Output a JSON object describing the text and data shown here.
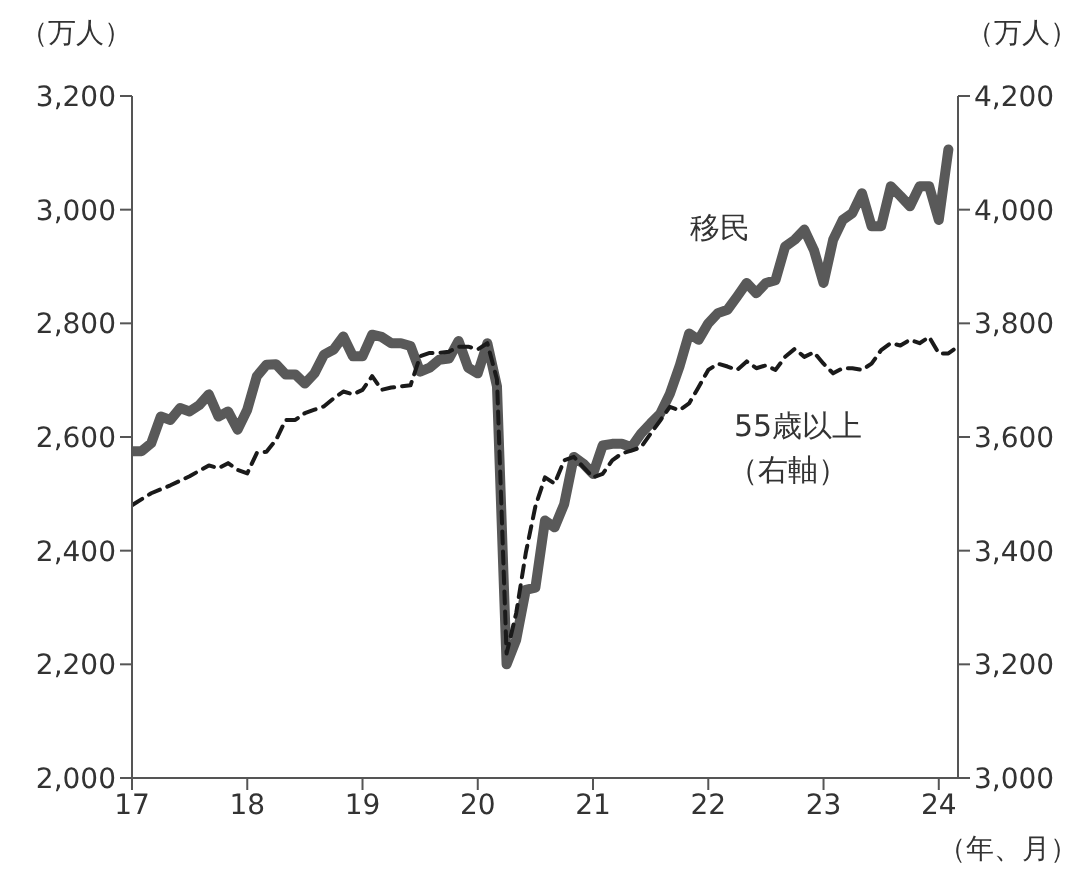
{
  "chart_data": {
    "type": "line",
    "ylabel": "（万人）",
    "y2label": "（万人）",
    "xlabel": "（年、月）",
    "annotations": [
      "（右軸）"
    ],
    "x": [
      "2017-01",
      "2017-02",
      "2017-03",
      "2017-04",
      "2017-05",
      "2017-06",
      "2017-07",
      "2017-08",
      "2017-09",
      "2017-10",
      "2017-11",
      "2017-12",
      "2018-01",
      "2018-02",
      "2018-03",
      "2018-04",
      "2018-05",
      "2018-06",
      "2018-07",
      "2018-08",
      "2018-09",
      "2018-10",
      "2018-11",
      "2018-12",
      "2019-01",
      "2019-02",
      "2019-03",
      "2019-04",
      "2019-05",
      "2019-06",
      "2019-07",
      "2019-08",
      "2019-09",
      "2019-10",
      "2019-11",
      "2019-12",
      "2020-01",
      "2020-02",
      "2020-03",
      "2020-04",
      "2020-05",
      "2020-06",
      "2020-07",
      "2020-08",
      "2020-09",
      "2020-10",
      "2020-11",
      "2020-12",
      "2021-01",
      "2021-02",
      "2021-03",
      "2021-04",
      "2021-05",
      "2021-06",
      "2021-07",
      "2021-08",
      "2021-09",
      "2021-10",
      "2021-11",
      "2021-12",
      "2022-01",
      "2022-02",
      "2022-03",
      "2022-04",
      "2022-05",
      "2022-06",
      "2022-07",
      "2022-08",
      "2022-09",
      "2022-10",
      "2022-11",
      "2022-12",
      "2023-01",
      "2023-02",
      "2023-03",
      "2023-04",
      "2023-05",
      "2023-06",
      "2023-07",
      "2023-08",
      "2023-09",
      "2023-10",
      "2023-11",
      "2023-12",
      "2024-01",
      "2024-02"
    ],
    "series": [
      {
        "name": "移民",
        "color": "#595959",
        "line_style": "solid",
        "values": [
          2575,
          2575,
          2589,
          2636,
          2630,
          2651,
          2645,
          2656,
          2675,
          2636,
          2645,
          2613,
          2648,
          2707,
          2727,
          2728,
          2710,
          2710,
          2694,
          2712,
          2745,
          2754,
          2777,
          2742,
          2742,
          2780,
          2776,
          2765,
          2765,
          2760,
          2715,
          2722,
          2736,
          2738,
          2769,
          2722,
          2712,
          2765,
          2689,
          2200,
          2243,
          2331,
          2335,
          2453,
          2441,
          2482,
          2565,
          2553,
          2535,
          2585,
          2588,
          2588,
          2582,
          2606,
          2624,
          2641,
          2676,
          2724,
          2782,
          2771,
          2800,
          2818,
          2824,
          2847,
          2871,
          2853,
          2871,
          2876,
          2935,
          2947,
          2965,
          2929,
          2871,
          2947,
          2982,
          2994,
          3029,
          2971,
          2971,
          3041,
          3024,
          3006,
          3041,
          3041,
          2982,
          3106
        ]
      },
      {
        "name": "55歳以上",
        "color": "#1a1a1a",
        "line_style": "dashed",
        "axis": "y2",
        "x": [
          "2017-01",
          "2017-03",
          "2017-05",
          "2017-07",
          "2017-09",
          "2017-10",
          "2017-11",
          "2017-12",
          "2018-01",
          "2018-02",
          "2018-03",
          "2018-04",
          "2018-05",
          "2018-06",
          "2018-07",
          "2018-08",
          "2018-09",
          "2018-10",
          "2018-11",
          "2018-12",
          "2019-01",
          "2019-02",
          "2019-03",
          "2019-04",
          "2019-05",
          "2019-06",
          "2019-07",
          "2019-08",
          "2019-09",
          "2019-10",
          "2019-11",
          "2019-12",
          "2020-01",
          "2020-02",
          "2020-03",
          "2020-04",
          "2020-05",
          "2020-06",
          "2020-07",
          "2020-08",
          "2020-09",
          "2020-10",
          "2020-11",
          "2020-12",
          "2021-01",
          "2021-02",
          "2021-03",
          "2021-04",
          "2021-05",
          "2021-06",
          "2021-07",
          "2021-08",
          "2021-09",
          "2021-10",
          "2021-11",
          "2021-12",
          "2022-01",
          "2022-02",
          "2022-03",
          "2022-04",
          "2022-05",
          "2022-06",
          "2022-07",
          "2022-08",
          "2022-09",
          "2022-10",
          "2022-11",
          "2022-12",
          "2023-01",
          "2023-02",
          "2023-03",
          "2023-04",
          "2023-05",
          "2023-06",
          "2023-07",
          "2023-08",
          "2023-09",
          "2023-10",
          "2023-11",
          "2023-12",
          "2024-01",
          "2024-02",
          "2024-03"
        ],
        "values": [
          3480,
          3501,
          3515,
          3531,
          3550,
          3545,
          3554,
          3542,
          3536,
          3572,
          3574,
          3595,
          3630,
          3630,
          3642,
          3648,
          3654,
          3668,
          3680,
          3675,
          3683,
          3707,
          3683,
          3687,
          3689,
          3691,
          3742,
          3748,
          3748,
          3750,
          3759,
          3759,
          3754,
          3765,
          3701,
          3219,
          3290,
          3396,
          3478,
          3529,
          3518,
          3559,
          3565,
          3547,
          3529,
          3535,
          3559,
          3571,
          3576,
          3582,
          3606,
          3629,
          3653,
          3647,
          3659,
          3688,
          3718,
          3729,
          3724,
          3718,
          3733,
          3721,
          3726,
          3718,
          3741,
          3755,
          3741,
          3749,
          3729,
          3712,
          3721,
          3721,
          3718,
          3729,
          3753,
          3765,
          3761,
          3771,
          3765,
          3776,
          3747,
          3747,
          3759
        ]
      }
    ],
    "xlim": [
      "2017-01",
      "2024-03"
    ],
    "xticks": [
      {
        "value": "2017-01",
        "label": "17"
      },
      {
        "value": "2018-01",
        "label": "18"
      },
      {
        "value": "2019-01",
        "label": "19"
      },
      {
        "value": "2020-01",
        "label": "20"
      },
      {
        "value": "2021-01",
        "label": "21"
      },
      {
        "value": "2022-01",
        "label": "22"
      },
      {
        "value": "2023-01",
        "label": "23"
      },
      {
        "value": "2024-01",
        "label": "24"
      }
    ],
    "ylim": [
      2000,
      3200
    ],
    "yticks": [
      {
        "value": 2000,
        "label": "2,000"
      },
      {
        "value": 2200,
        "label": "2,200"
      },
      {
        "value": 2400,
        "label": "2,400"
      },
      {
        "value": 2600,
        "label": "2,600"
      },
      {
        "value": 2800,
        "label": "2,800"
      },
      {
        "value": 3000,
        "label": "3,000"
      },
      {
        "value": 3200,
        "label": "3,200"
      }
    ],
    "y2lim": [
      3000,
      4200
    ],
    "y2ticks": [
      {
        "value": 3000,
        "label": "3,000"
      },
      {
        "value": 3200,
        "label": "3,200"
      },
      {
        "value": 3400,
        "label": "3,400"
      },
      {
        "value": 3600,
        "label": "3,600"
      },
      {
        "value": 3800,
        "label": "3,800"
      },
      {
        "value": 4000,
        "label": "4,000"
      },
      {
        "value": 4200,
        "label": "4,200"
      }
    ],
    "grid": false,
    "legend": false
  }
}
